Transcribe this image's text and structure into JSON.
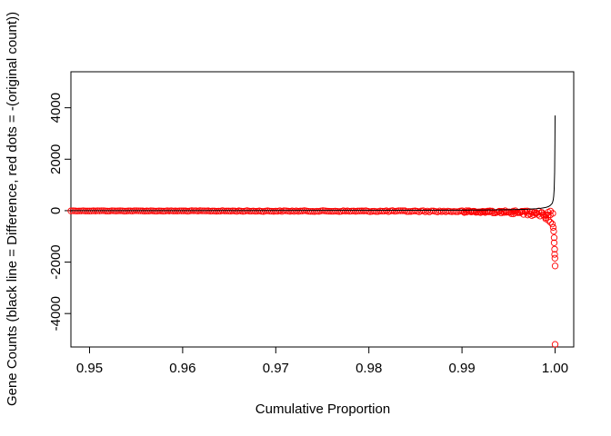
{
  "chart_data": {
    "type": "scatter",
    "xlabel": "Cumulative Proportion",
    "ylabel": "Gene Counts (black line = Difference, red dots = -(original count))",
    "xlim": [
      0.948,
      1.002
    ],
    "ylim": [
      -5300,
      5400
    ],
    "x_ticks": [
      0.95,
      0.96,
      0.97,
      0.98,
      0.99,
      1.0
    ],
    "x_tick_labels": [
      "0.95",
      "0.96",
      "0.97",
      "0.98",
      "0.99",
      "1.00"
    ],
    "y_ticks": [
      -4000,
      -2000,
      0,
      2000,
      4000
    ],
    "y_tick_labels": [
      "-4000",
      "-2000",
      "0",
      "2000",
      "4000"
    ],
    "grid": false,
    "series": [
      {
        "kind": "line",
        "color": "#000000",
        "description": "difference (black line)",
        "points": [
          [
            0.948,
            0
          ],
          [
            0.96,
            2
          ],
          [
            0.97,
            5
          ],
          [
            0.98,
            10
          ],
          [
            0.985,
            14
          ],
          [
            0.99,
            20
          ],
          [
            0.993,
            28
          ],
          [
            0.995,
            38
          ],
          [
            0.997,
            55
          ],
          [
            0.998,
            75
          ],
          [
            0.9985,
            95
          ],
          [
            0.999,
            125
          ],
          [
            0.9993,
            160
          ],
          [
            0.9995,
            210
          ],
          [
            0.9997,
            290
          ],
          [
            0.9998,
            420
          ],
          [
            0.99985,
            560
          ],
          [
            0.9999,
            820
          ],
          [
            0.99995,
            1500
          ],
          [
            0.99998,
            2600
          ],
          [
            1.0,
            3700
          ]
        ]
      },
      {
        "kind": "scatter",
        "color": "#ff0000",
        "marker": "open-circle",
        "description": "-(original count) (red dots)",
        "points": [
          [
            0.9997,
            -520
          ],
          [
            0.9998,
            -650
          ],
          [
            0.99985,
            -800
          ],
          [
            0.9999,
            -1050
          ],
          [
            0.9999,
            -1250
          ],
          [
            0.99995,
            -1500
          ],
          [
            0.99995,
            -1700
          ],
          [
            0.99998,
            -1850
          ],
          [
            1.0,
            -2150
          ],
          [
            1.0,
            -5200
          ],
          [
            0.9995,
            -450
          ],
          [
            0.9993,
            -380
          ],
          [
            0.999,
            -320
          ]
        ]
      }
    ]
  }
}
